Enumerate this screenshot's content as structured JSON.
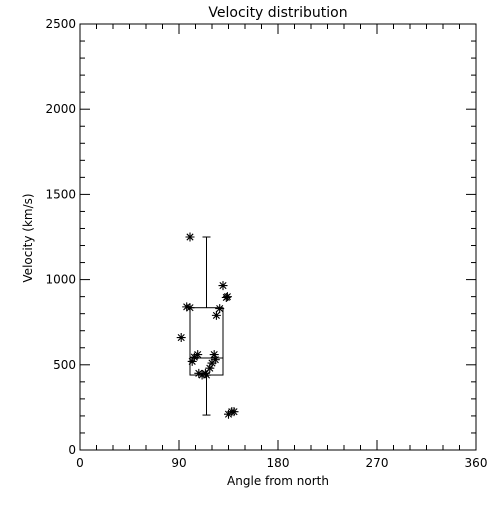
{
  "chart_data": {
    "type": "scatter",
    "title": "Velocity distribution",
    "xlabel": "Angle from north",
    "ylabel": "Velocity (km/s)",
    "xlim": [
      0,
      360
    ],
    "ylim": [
      0,
      2500
    ],
    "xticks": [
      "0",
      "90",
      "180",
      "270",
      "360"
    ],
    "xtick_values": [
      0,
      90,
      180,
      270,
      360
    ],
    "yticks": [
      "0",
      "500",
      "1000",
      "1500",
      "2000",
      "2500"
    ],
    "ytick_values": [
      0,
      500,
      1000,
      1500,
      2000,
      2500
    ],
    "grid": false,
    "marker": "asterisk",
    "points": [
      {
        "x": 92,
        "y": 660
      },
      {
        "x": 97,
        "y": 840
      },
      {
        "x": 100,
        "y": 835
      },
      {
        "x": 100,
        "y": 1250
      },
      {
        "x": 102,
        "y": 520
      },
      {
        "x": 104,
        "y": 545
      },
      {
        "x": 107,
        "y": 560
      },
      {
        "x": 108,
        "y": 450
      },
      {
        "x": 111,
        "y": 440
      },
      {
        "x": 114,
        "y": 450
      },
      {
        "x": 115,
        "y": 440
      },
      {
        "x": 118,
        "y": 480
      },
      {
        "x": 120,
        "y": 510
      },
      {
        "x": 122,
        "y": 560
      },
      {
        "x": 123,
        "y": 530
      },
      {
        "x": 124,
        "y": 790
      },
      {
        "x": 127,
        "y": 830
      },
      {
        "x": 130,
        "y": 965
      },
      {
        "x": 133,
        "y": 895
      },
      {
        "x": 134,
        "y": 900
      },
      {
        "x": 135,
        "y": 210
      },
      {
        "x": 138,
        "y": 225
      },
      {
        "x": 140,
        "y": 225
      }
    ],
    "boxplot": {
      "x_left": 100,
      "x_right": 130,
      "whisker_x": 115,
      "min": 205,
      "q1": 440,
      "median": 540,
      "q3": 835,
      "max": 1250
    },
    "colors": {
      "axis": "#000000",
      "marks": "#000000",
      "background": "#ffffff"
    }
  }
}
